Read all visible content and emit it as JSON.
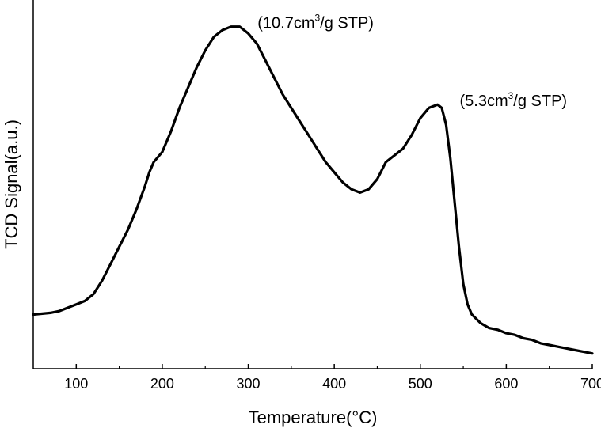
{
  "chart_data": {
    "type": "line",
    "xlabel": "Temperature(°C)",
    "ylabel": "TCD Signal(a.u.)",
    "xlim": [
      50,
      700
    ],
    "ylim": [
      0,
      100
    ],
    "xticks": [
      100,
      200,
      300,
      400,
      500,
      600,
      700
    ],
    "y_tick_labels_shown": false,
    "grid": false,
    "legend": "none",
    "line_color": "#000000",
    "series": [
      {
        "x": [
          50,
          70,
          80,
          90,
          100,
          110,
          120,
          130,
          140,
          150,
          160,
          170,
          180,
          185,
          190,
          200,
          210,
          220,
          230,
          240,
          250,
          260,
          270,
          280,
          290,
          300,
          310,
          320,
          330,
          340,
          350,
          360,
          370,
          380,
          390,
          400,
          410,
          420,
          430,
          440,
          450,
          460,
          470,
          480,
          490,
          500,
          510,
          520,
          525,
          530,
          535,
          540,
          545,
          550,
          555,
          560,
          570,
          580,
          590,
          600,
          610,
          620,
          630,
          640,
          650,
          660,
          670,
          680,
          690,
          700
        ],
        "y": [
          16,
          16.5,
          17,
          18,
          19,
          20,
          22,
          26,
          31,
          36,
          41,
          47,
          54,
          58,
          61,
          64,
          70,
          77,
          83,
          89,
          94,
          98,
          100,
          101,
          101,
          99,
          96,
          91,
          86,
          81,
          77,
          73,
          69,
          65,
          61,
          58,
          55,
          53,
          52,
          53,
          56,
          61,
          63,
          65,
          69,
          74,
          77,
          78,
          77,
          72,
          62,
          49,
          36,
          25,
          19,
          16,
          13.5,
          12,
          11.5,
          10.5,
          10,
          9,
          8.5,
          7.5,
          7,
          6.5,
          6,
          5.5,
          5,
          4.5
        ]
      }
    ],
    "annotations": [
      {
        "x": 285,
        "y": 101,
        "base": "(10.7cm",
        "sup": "3",
        "rest": "/g STP)"
      },
      {
        "x": 520,
        "y": 78,
        "base": "(5.3cm",
        "sup": "3",
        "rest": "/g STP)"
      }
    ]
  }
}
